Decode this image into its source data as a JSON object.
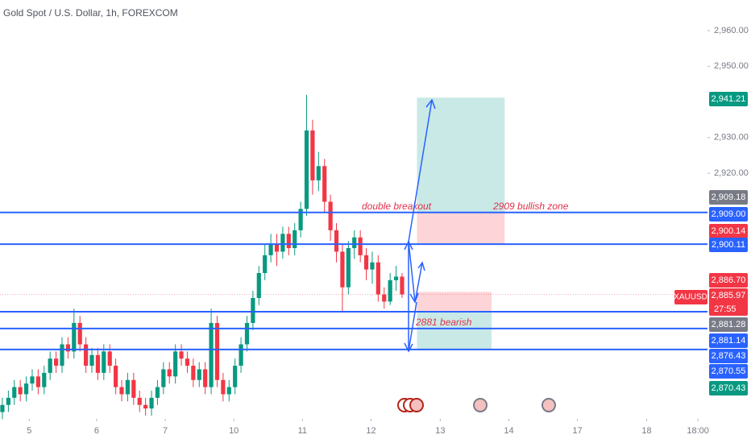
{
  "chart_data": {
    "type": "candlestick",
    "title": "Gold Spot / U.S. Dollar, 1h, FOREXCOM",
    "symbol": "XAUUSD",
    "countdown": "27:55",
    "up_color": "#089981",
    "down_color": "#f23645",
    "line_color": "#2962ff",
    "xlim": [
      -0.4,
      118.2
    ],
    "ylim": [
      2851.1,
      2968.6
    ],
    "yticks": [
      {
        "value": 2920,
        "label": "2,920.00"
      },
      {
        "value": 2930,
        "label": "2,930.00"
      },
      {
        "value": 2950,
        "label": "2,950.00"
      },
      {
        "value": 2960,
        "label": "2,960.00"
      }
    ],
    "xticks": [
      {
        "value": 4.5,
        "label": "5"
      },
      {
        "value": 15.8,
        "label": "6"
      },
      {
        "value": 27.3,
        "label": "7"
      },
      {
        "value": 38.8,
        "label": "10"
      },
      {
        "value": 50.3,
        "label": "11"
      },
      {
        "value": 61.8,
        "label": "12"
      },
      {
        "value": 73.4,
        "label": "13"
      },
      {
        "value": 84.9,
        "label": "14"
      },
      {
        "value": 96.4,
        "label": "17"
      },
      {
        "value": 108,
        "label": "18"
      },
      {
        "value": 116.6,
        "label": "18:00"
      }
    ],
    "open": [
      2853,
      2855,
      2857,
      2860,
      2858,
      2861,
      2863,
      2860,
      2864,
      2868,
      2866,
      2872,
      2870,
      2878,
      2872,
      2866,
      2869,
      2864,
      2870,
      2866,
      2860,
      2858,
      2862,
      2857,
      2855,
      2854,
      2857,
      2860,
      2865,
      2863,
      2870,
      2868,
      2866,
      2862,
      2865,
      2860,
      2878,
      2862,
      2858,
      2860,
      2866,
      2872,
      2878,
      2885,
      2892,
      2897,
      2900,
      2898,
      2903,
      2899,
      2904,
      2910,
      2932,
      2918,
      2922,
      2912,
      2904,
      2898,
      2888,
      2899,
      2902,
      2897,
      2893,
      2895,
      2886,
      2884,
      2890,
      2891
    ],
    "high": [
      2857,
      2859,
      2862,
      2862,
      2863,
      2865,
      2865,
      2866,
      2870,
      2870,
      2874,
      2874,
      2882,
      2880,
      2874,
      2871,
      2871,
      2872,
      2872,
      2868,
      2862,
      2864,
      2864,
      2859,
      2857,
      2859,
      2862,
      2867,
      2867,
      2872,
      2872,
      2870,
      2868,
      2867,
      2867,
      2882,
      2880,
      2864,
      2862,
      2868,
      2874,
      2880,
      2887,
      2894,
      2900,
      2903,
      2903,
      2905,
      2905,
      2906,
      2912,
      2942,
      2935,
      2926,
      2924,
      2914,
      2906,
      2900,
      2901,
      2904,
      2904,
      2899,
      2898,
      2897,
      2888,
      2892,
      2894,
      2892
    ],
    "low": [
      2851,
      2853,
      2855,
      2856,
      2856,
      2859,
      2858,
      2858,
      2862,
      2864,
      2864,
      2868,
      2868,
      2870,
      2864,
      2864,
      2862,
      2862,
      2864,
      2858,
      2856,
      2856,
      2855,
      2853,
      2852,
      2852,
      2855,
      2858,
      2861,
      2861,
      2866,
      2864,
      2860,
      2860,
      2858,
      2858,
      2860,
      2856,
      2856,
      2858,
      2864,
      2870,
      2876,
      2883,
      2890,
      2895,
      2894,
      2896,
      2897,
      2897,
      2902,
      2908,
      2914,
      2915,
      2909,
      2901,
      2895,
      2881,
      2886,
      2896,
      2895,
      2890,
      2889,
      2884,
      2882,
      2883,
      2887,
      2885
    ],
    "close": [
      2855,
      2857,
      2860,
      2858,
      2861,
      2863,
      2860,
      2864,
      2868,
      2866,
      2872,
      2870,
      2878,
      2872,
      2866,
      2869,
      2864,
      2870,
      2866,
      2860,
      2858,
      2862,
      2857,
      2855,
      2854,
      2857,
      2860,
      2865,
      2863,
      2870,
      2868,
      2866,
      2862,
      2865,
      2860,
      2878,
      2862,
      2858,
      2860,
      2866,
      2872,
      2878,
      2885,
      2892,
      2897,
      2900,
      2898,
      2903,
      2899,
      2904,
      2910,
      2932,
      2918,
      2922,
      2912,
      2904,
      2898,
      2888,
      2899,
      2902,
      2897,
      2893,
      2895,
      2886,
      2884,
      2890,
      2891,
      2886
    ],
    "hlines": [
      2909.0,
      2900.11,
      2881.14,
      2876.43,
      2870.55
    ],
    "positions": [
      {
        "entry": 2909.18,
        "stop": 2900.14,
        "target": 2941.21,
        "x": [
          69.5,
          84.2
        ]
      },
      {
        "entry": 2881.28,
        "stop": 2886.7,
        "target": 2870.43,
        "x": [
          69.5,
          82.0
        ]
      }
    ],
    "annotations": [
      "double breakout",
      "2909 bullish zone",
      "2881 bearish"
    ],
    "price_labels": [
      {
        "label": "2,941.21",
        "color": "#089981"
      },
      {
        "label": "2,909.18",
        "color": "#787b86"
      },
      {
        "label": "2,909.00",
        "color": "#2962ff"
      },
      {
        "label": "2,900.14",
        "color": "#f23645"
      },
      {
        "label": "2,900.11",
        "color": "#2962ff"
      },
      {
        "label": "2,886.70",
        "color": "#f23645"
      },
      {
        "label": "2,885.97",
        "color": "#f23645"
      },
      {
        "label": "2,881.28",
        "color": "#787b86"
      },
      {
        "label": "2,881.14",
        "color": "#2962ff"
      },
      {
        "label": "2,876.43",
        "color": "#2962ff"
      },
      {
        "label": "2,870.55",
        "color": "#2962ff"
      },
      {
        "label": "2,870.43",
        "color": "#089981"
      }
    ]
  }
}
